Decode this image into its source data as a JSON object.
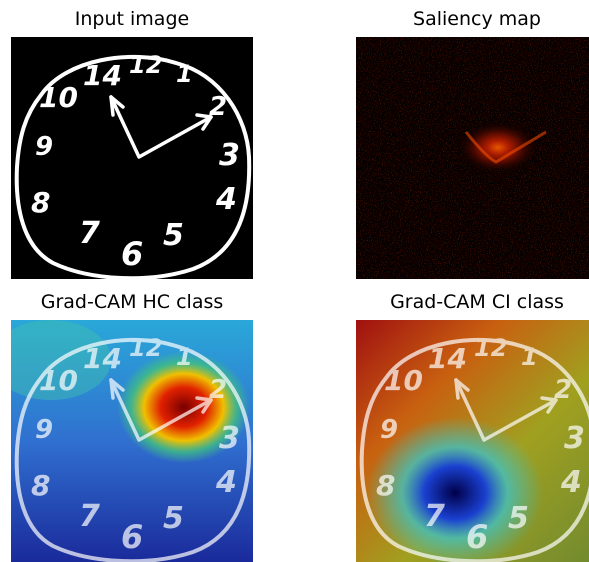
{
  "panels": [
    {
      "title": "Input image"
    },
    {
      "title": "Saliency map"
    },
    {
      "title": "Grad-CAM HC class"
    },
    {
      "title": "Grad-CAM CI class"
    }
  ],
  "clock_digits": [
    "10",
    "14",
    "12",
    "1",
    "2",
    "3",
    "4",
    "5",
    "6",
    "7",
    "8",
    "9"
  ]
}
